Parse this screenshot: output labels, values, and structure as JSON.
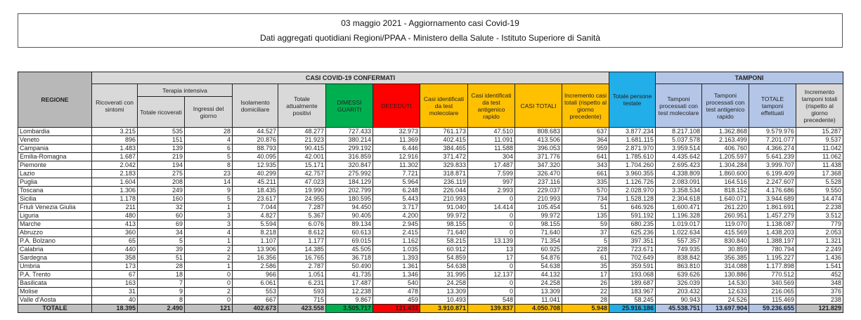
{
  "title": "03 maggio 2021 - Aggiornamento casi Covid-19",
  "subtitle": "Dati aggregati quotidiani Regioni/PPAA - Ministero della Salute - Istituto Superiore di Sanità",
  "colors": {
    "dimessi": "#00b050",
    "deceduti": "#ff0000",
    "casi": "#ffc000",
    "persone": "#22aee8",
    "tamponi": "#b4c6e7"
  },
  "headers": {
    "regione": "REGIONE",
    "casi_group": "CASI COVID-19 CONFERMATI",
    "tamponi_group": "TAMPONI",
    "terapia_intensiva": "Terapia intensiva",
    "columns": [
      "Ricoverati con sintomi",
      "Totale ricoverati",
      "Ingressi del giorno",
      "Isolamento domiciliare",
      "Totale attualmente positivi",
      "DIMESSI GUARITI",
      "DECEDUTI",
      "Casi identificati da test molecolare",
      "Casi identificati da test antigenico rapido",
      "CASI TOTALI",
      "Incremento casi totali (rispetto al giorno precedente)",
      "Totale persone testate",
      "Tamponi processati con test molecolare",
      "Tamponi processati con test antigenico rapido",
      "TOTALE tamponi effettuati",
      "Incremento tamponi totali (rispetto al giorno precedente)"
    ]
  },
  "rows": [
    [
      "Lombardia",
      "3.215",
      "535",
      "28",
      "44.527",
      "48.277",
      "727.433",
      "32.973",
      "761.173",
      "47.510",
      "808.683",
      "637",
      "3.877.234",
      "8.217.108",
      "1.362.868",
      "9.579.976",
      "15.287"
    ],
    [
      "Veneto",
      "896",
      "151",
      "4",
      "20.876",
      "21.923",
      "380.214",
      "11.369",
      "402.415",
      "11.091",
      "413.506",
      "364",
      "1.681.115",
      "5.037.578",
      "2.163.499",
      "7.201.077",
      "9.537"
    ],
    [
      "Campania",
      "1.483",
      "139",
      "6",
      "88.793",
      "90.415",
      "299.192",
      "6.446",
      "384.465",
      "11.588",
      "396.053",
      "959",
      "2.871.970",
      "3.959.514",
      "406.760",
      "4.366.274",
      "11.042"
    ],
    [
      "Emilia-Romagna",
      "1.687",
      "219",
      "5",
      "40.095",
      "42.001",
      "316.859",
      "12.916",
      "371.472",
      "304",
      "371.776",
      "641",
      "1.785.610",
      "4.435.642",
      "1.205.597",
      "5.641.239",
      "11.062"
    ],
    [
      "Piemonte",
      "2.042",
      "194",
      "8",
      "12.935",
      "15.171",
      "320.847",
      "11.302",
      "329.833",
      "17.487",
      "347.320",
      "343",
      "1.704.260",
      "2.695.423",
      "1.304.284",
      "3.999.707",
      "11.438"
    ],
    [
      "Lazio",
      "2.183",
      "275",
      "23",
      "40.299",
      "42.757",
      "275.992",
      "7.721",
      "318.871",
      "7.599",
      "326.470",
      "661",
      "3.960.355",
      "4.338.809",
      "1.860.600",
      "6.199.409",
      "17.368"
    ],
    [
      "Puglia",
      "1.604",
      "208",
      "14",
      "45.211",
      "47.023",
      "184.129",
      "5.964",
      "236.119",
      "997",
      "237.116",
      "335",
      "1.126.726",
      "2.083.091",
      "164.516",
      "2.247.607",
      "5.528"
    ],
    [
      "Toscana",
      "1.306",
      "249",
      "9",
      "18.435",
      "19.990",
      "202.799",
      "6.248",
      "226.044",
      "2.993",
      "229.037",
      "570",
      "2.028.970",
      "3.358.534",
      "818.152",
      "4.176.686",
      "9.550"
    ],
    [
      "Sicilia",
      "1.178",
      "160",
      "5",
      "23.617",
      "24.955",
      "180.595",
      "5.443",
      "210.993",
      "0",
      "210.993",
      "734",
      "1.528.128",
      "2.304.618",
      "1.640.071",
      "3.944.689",
      "14.474"
    ],
    [
      "Friuli Venezia Giulia",
      "211",
      "32",
      "1",
      "7.044",
      "7.287",
      "94.450",
      "3.717",
      "91.040",
      "14.414",
      "105.454",
      "51",
      "646.926",
      "1.600.471",
      "261.220",
      "1.861.691",
      "2.238"
    ],
    [
      "Liguria",
      "480",
      "60",
      "3",
      "4.827",
      "5.367",
      "90.405",
      "4.200",
      "99.972",
      "0",
      "99.972",
      "135",
      "591.192",
      "1.196.328",
      "260.951",
      "1.457.279",
      "3.512"
    ],
    [
      "Marche",
      "413",
      "69",
      "3",
      "5.594",
      "6.076",
      "89.134",
      "2.945",
      "98.155",
      "0",
      "98.155",
      "59",
      "680.235",
      "1.019.017",
      "119.070",
      "1.138.087",
      "779"
    ],
    [
      "Abruzzo",
      "360",
      "34",
      "4",
      "8.218",
      "8.612",
      "60.613",
      "2.415",
      "71.640",
      "0",
      "71.640",
      "37",
      "625.236",
      "1.022.634",
      "415.569",
      "1.438.203",
      "2.053"
    ],
    [
      "P.A. Bolzano",
      "65",
      "5",
      "1",
      "1.107",
      "1.177",
      "69.015",
      "1.162",
      "58.215",
      "13.139",
      "71.354",
      "5",
      "397.351",
      "557.357",
      "830.840",
      "1.388.197",
      "1.321"
    ],
    [
      "Calabria",
      "440",
      "39",
      "2",
      "13.906",
      "14.385",
      "45.505",
      "1.035",
      "60.912",
      "13",
      "60.925",
      "228",
      "723.671",
      "749.935",
      "30.859",
      "780.794",
      "2.249"
    ],
    [
      "Sardegna",
      "358",
      "51",
      "2",
      "16.356",
      "16.765",
      "36.718",
      "1.393",
      "54.859",
      "17",
      "54.876",
      "61",
      "702.649",
      "838.842",
      "356.385",
      "1.195.227",
      "1.436"
    ],
    [
      "Umbria",
      "173",
      "28",
      "1",
      "2.586",
      "2.787",
      "50.490",
      "1.361",
      "54.638",
      "0",
      "54.638",
      "35",
      "359.591",
      "863.810",
      "314.088",
      "1.177.898",
      "1.541"
    ],
    [
      "P.A. Trento",
      "67",
      "18",
      "0",
      "966",
      "1.051",
      "41.735",
      "1.346",
      "31.995",
      "12.137",
      "44.132",
      "17",
      "193.068",
      "639.626",
      "130.886",
      "770.512",
      "452"
    ],
    [
      "Basilicata",
      "163",
      "7",
      "0",
      "6.061",
      "6.231",
      "17.487",
      "540",
      "24.258",
      "0",
      "24.258",
      "26",
      "189.687",
      "326.039",
      "14.530",
      "340.569",
      "348"
    ],
    [
      "Molise",
      "31",
      "9",
      "2",
      "553",
      "593",
      "12.238",
      "478",
      "13.309",
      "0",
      "13.309",
      "22",
      "183.967",
      "203.432",
      "12.633",
      "216.065",
      "376"
    ],
    [
      "Valle d'Aosta",
      "40",
      "8",
      "0",
      "667",
      "715",
      "9.867",
      "459",
      "10.493",
      "548",
      "11.041",
      "28",
      "58.245",
      "90.943",
      "24.526",
      "115.469",
      "238"
    ]
  ],
  "totals": [
    "TOTALE",
    "18.395",
    "2.490",
    "121",
    "402.673",
    "423.558",
    "3.505.717",
    "121.433",
    "3.910.871",
    "139.837",
    "4.050.708",
    "5.948",
    "25.916.186",
    "45.538.751",
    "13.697.904",
    "59.236.655",
    "121.829"
  ]
}
